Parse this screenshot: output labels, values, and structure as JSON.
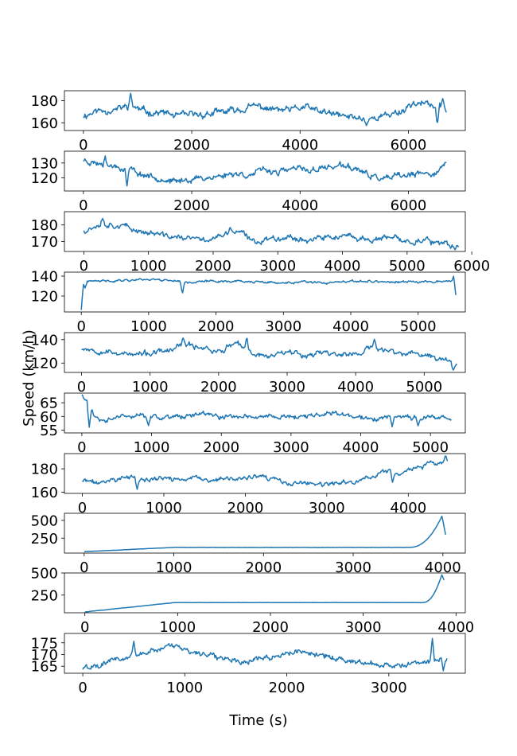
{
  "figure": {
    "xlabel": "Time (s)",
    "ylabel": "Speed (km/h)"
  },
  "chart_data": [
    {
      "type": "line",
      "series_color": "#1f77b4",
      "xlim": [
        -350,
        7050
      ],
      "ylim": [
        153,
        189
      ],
      "xticks": [
        0,
        2000,
        4000,
        6000
      ],
      "yticks": [
        160,
        180
      ],
      "xmax": 6700,
      "seed": 11,
      "base": [
        167,
        171,
        172,
        175,
        170,
        169,
        166,
        167,
        168,
        170,
        172,
        175,
        172,
        171,
        174,
        170,
        167,
        165,
        164,
        166,
        170,
        178,
        176,
        172
      ],
      "vol": 4,
      "spikes": [
        [
          0.13,
          187
        ],
        [
          0.78,
          157
        ],
        [
          0.975,
          158
        ],
        [
          0.99,
          182
        ]
      ],
      "xlabel_shown": ""
    },
    {
      "type": "line",
      "series_color": "#1f77b4",
      "xlim": [
        -350,
        7050
      ],
      "ylim": [
        111,
        138
      ],
      "xticks": [
        0,
        2000,
        4000,
        6000
      ],
      "yticks": [
        120,
        130
      ],
      "xmax": 6700,
      "seed": 23,
      "base": [
        132,
        130,
        128,
        126,
        122,
        120,
        117,
        119,
        120,
        121,
        123,
        122,
        125,
        124,
        126,
        125,
        127,
        128,
        126,
        121,
        119,
        121,
        122,
        123,
        128
      ],
      "vol": 2.6,
      "spikes": [
        [
          0.06,
          135
        ],
        [
          0.12,
          114
        ]
      ],
      "xlabel_shown": ""
    },
    {
      "type": "line",
      "series_color": "#1f77b4",
      "xlim": [
        -300,
        5900
      ],
      "ylim": [
        164,
        188
      ],
      "xticks": [
        0,
        1000,
        2000,
        3000,
        4000,
        5000,
        6000
      ],
      "yticks": [
        170,
        180
      ],
      "xmax": 5800,
      "seed": 37,
      "base": [
        177,
        181,
        180,
        177,
        175,
        173,
        172,
        171,
        173,
        176,
        170,
        172,
        173,
        171,
        172,
        173,
        172,
        171,
        172,
        170,
        171,
        168,
        167
      ],
      "vol": 2.2,
      "spikes": [
        [
          0.05,
          184
        ],
        [
          0.39,
          179
        ],
        [
          0.99,
          165
        ]
      ],
      "xlabel_shown": ""
    },
    {
      "type": "line",
      "series_color": "#1f77b4",
      "xlim": [
        -250,
        5700
      ],
      "ylim": [
        104,
        144
      ],
      "xticks": [
        0,
        1000,
        2000,
        3000,
        4000,
        5000
      ],
      "yticks": [
        120,
        140
      ],
      "xmax": 5560,
      "seed": 41,
      "base": [
        134,
        135,
        136,
        137,
        136,
        134,
        135,
        135,
        134,
        133,
        134,
        133,
        134,
        135,
        134,
        134,
        135,
        135
      ],
      "vol": 1.4,
      "spikes": [
        [
          0.0,
          106
        ],
        [
          0.01,
          128
        ],
        [
          0.27,
          122
        ],
        [
          0.995,
          141
        ],
        [
          1.0,
          121
        ]
      ],
      "xlabel_shown": ""
    },
    {
      "type": "line",
      "series_color": "#1f77b4",
      "xlim": [
        -250,
        5600
      ],
      "ylim": [
        112,
        146
      ],
      "xticks": [
        0,
        1000,
        2000,
        3000,
        4000,
        5000
      ],
      "yticks": [
        120,
        140
      ],
      "xmax": 5480,
      "seed": 53,
      "base": [
        133,
        131,
        129,
        127,
        128,
        130,
        135,
        134,
        130,
        136,
        128,
        126,
        131,
        127,
        129,
        128,
        127,
        133,
        130,
        128,
        127,
        124,
        119
      ],
      "vol": 3,
      "spikes": [
        [
          0.27,
          142
        ],
        [
          0.44,
          143
        ],
        [
          0.78,
          141
        ],
        [
          0.99,
          114
        ]
      ],
      "xlabel_shown": ""
    },
    {
      "type": "line",
      "series_color": "#1f77b4",
      "xlim": [
        -250,
        5500
      ],
      "ylim": [
        54,
        68.5
      ],
      "xticks": [
        0,
        1000,
        2000,
        3000,
        4000,
        5000
      ],
      "yticks": [
        55,
        60,
        65
      ],
      "xmax": 5300,
      "seed": 61,
      "base": [
        67,
        58,
        60,
        60,
        59.5,
        60,
        60.5,
        60,
        60,
        60,
        60,
        60,
        60.5,
        61,
        60,
        59,
        60,
        59.5,
        60,
        59
      ],
      "vol": 1.1,
      "spikes": [
        [
          0.0,
          68
        ],
        [
          0.02,
          56
        ],
        [
          0.18,
          56.5
        ],
        [
          0.84,
          56
        ],
        [
          0.91,
          56.5
        ]
      ],
      "xlabel_shown": ""
    },
    {
      "type": "line",
      "series_color": "#1f77b4",
      "xlim": [
        -220,
        4700
      ],
      "ylim": [
        159,
        193
      ],
      "xticks": [
        0,
        1000,
        2000,
        3000,
        4000
      ],
      "yticks": [
        160,
        180
      ],
      "xmax": 4480,
      "seed": 71,
      "base": [
        170,
        168,
        171,
        173,
        170,
        172,
        171,
        172,
        170,
        171,
        172,
        173,
        171,
        167,
        168,
        166,
        167,
        169,
        172,
        178,
        176,
        181,
        184,
        185
      ],
      "vol": 2.4,
      "spikes": [
        [
          0.15,
          162
        ],
        [
          0.85,
          168
        ],
        [
          0.995,
          192
        ]
      ],
      "xlabel_shown": ""
    },
    {
      "type": "line",
      "series_color": "#1f77b4",
      "xlim": [
        -220,
        4250
      ],
      "ylim": [
        40,
        600
      ],
      "xticks": [
        0,
        1000,
        2000,
        3000,
        4000
      ],
      "yticks": [
        250,
        500
      ],
      "xmax": 4030,
      "seed": 83,
      "growth": {
        "start": 60,
        "plateau": 120,
        "plateau_at": 0.25,
        "rise_at": 0.9,
        "peak": 560,
        "end": 300
      },
      "vol": 2,
      "xlabel_shown": ""
    },
    {
      "type": "line",
      "series_color": "#1f77b4",
      "xlim": [
        -220,
        4100
      ],
      "ylim": [
        50,
        500
      ],
      "xticks": [
        0,
        1000,
        2000,
        3000,
        4000
      ],
      "yticks": [
        250,
        500
      ],
      "xmax": 3870,
      "seed": 97,
      "growth": {
        "start": 60,
        "plateau": 165,
        "plateau_at": 0.25,
        "rise_at": 0.94,
        "peak": 480,
        "end": 420
      },
      "vol": 2,
      "xlabel_shown": ""
    },
    {
      "type": "line",
      "series_color": "#1f77b4",
      "xlim": [
        -180,
        3750
      ],
      "ylim": [
        162,
        179
      ],
      "xticks": [
        0,
        1000,
        2000,
        3000
      ],
      "yticks": [
        165,
        170,
        175
      ],
      "xmax": 3570,
      "seed": 101,
      "base": [
        164,
        166,
        168,
        170,
        172,
        174,
        171,
        170,
        168,
        167,
        169,
        170,
        171,
        170,
        168,
        167,
        166,
        165,
        166,
        167,
        168
      ],
      "vol": 1.5,
      "spikes": [
        [
          0.14,
          176
        ],
        [
          0.23,
          174
        ],
        [
          0.96,
          177
        ],
        [
          0.99,
          163
        ]
      ],
      "xlabel_shown": "Time (s)"
    }
  ]
}
